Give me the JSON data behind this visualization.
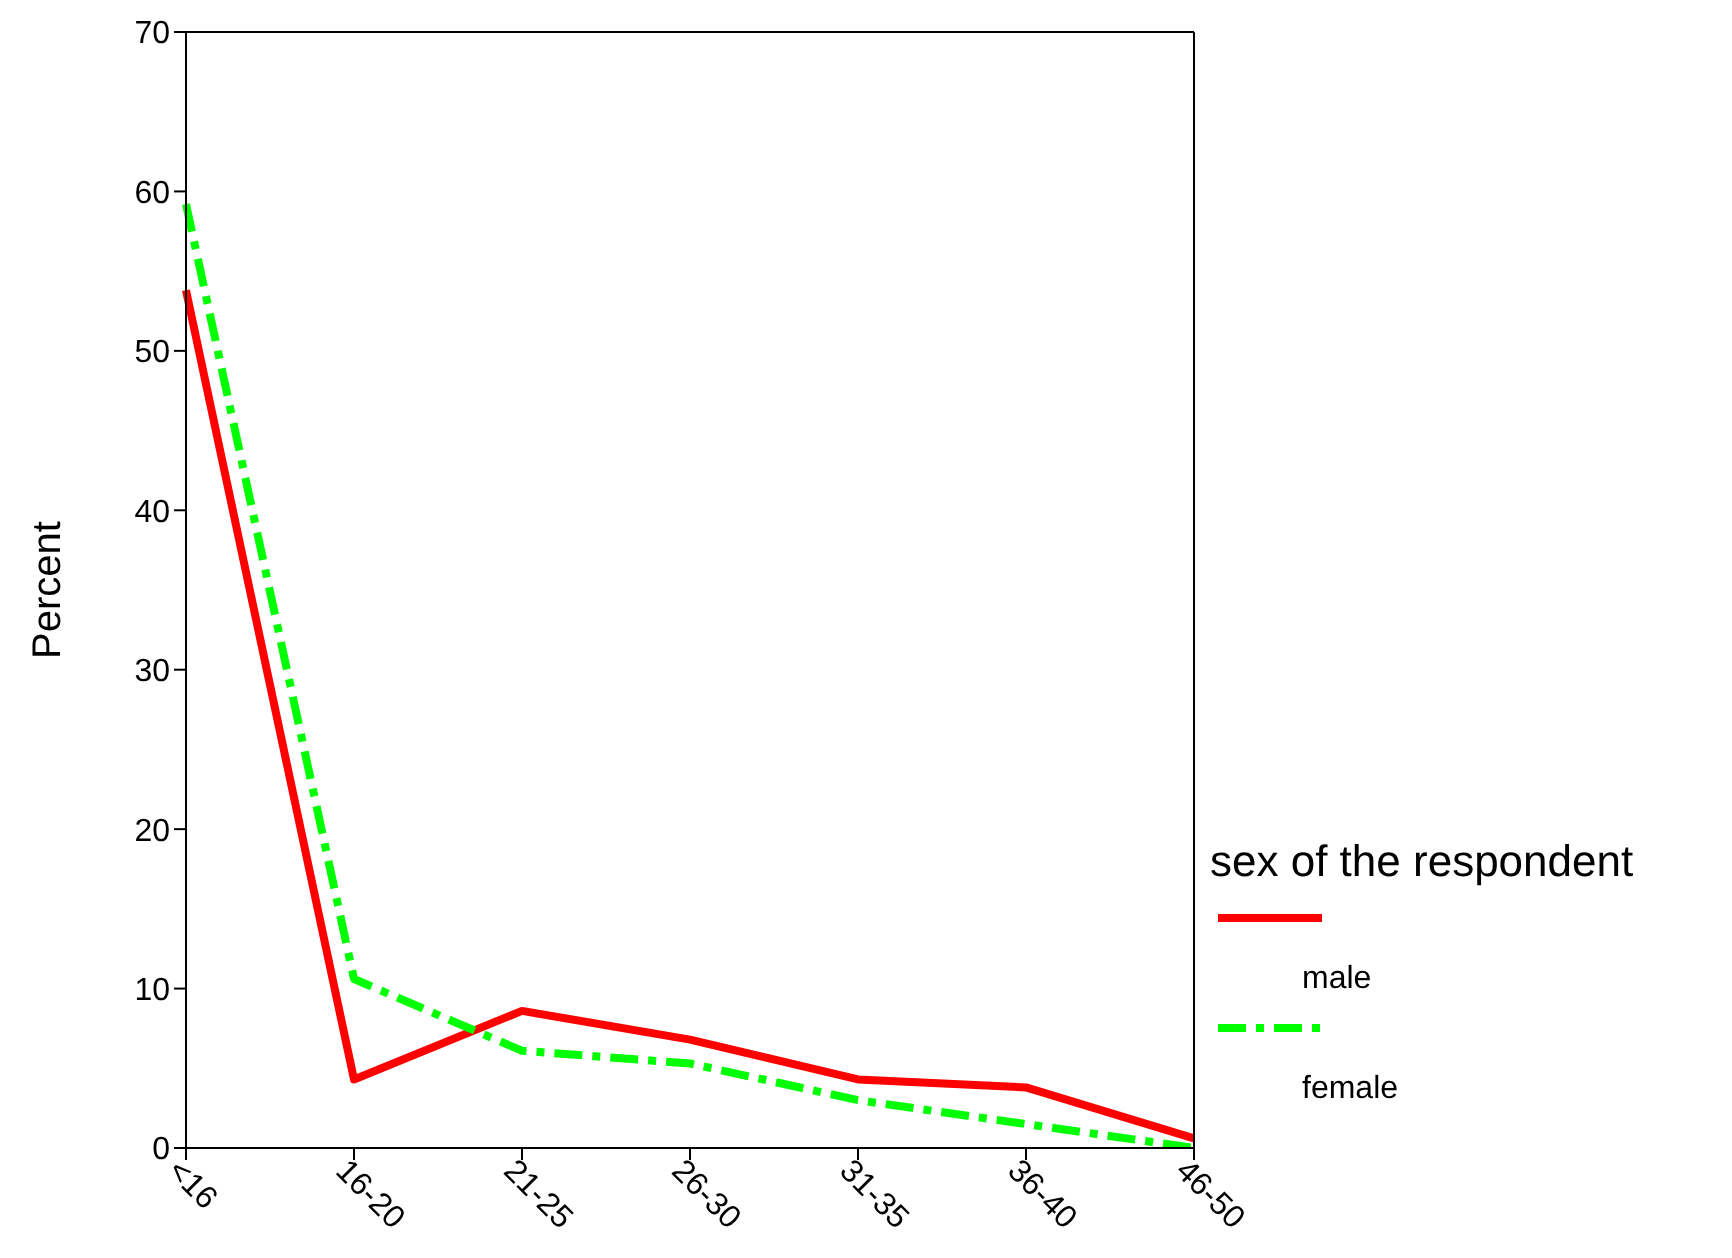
{
  "chart_data": {
    "type": "line",
    "ylabel": "Percent",
    "legend_title": "sex of the respondent",
    "legend": "right",
    "grid": false,
    "marker": "none",
    "categories": [
      "<16",
      "16-20",
      "21-25",
      "26-30",
      "31-35",
      "36-40",
      "46-50"
    ],
    "ylim": [
      0,
      70
    ],
    "yticks": [
      0,
      10,
      20,
      30,
      40,
      50,
      60,
      70
    ],
    "series": [
      {
        "name": "male",
        "color": "#ff0000",
        "line_style": "solid",
        "values": [
          53.8,
          4.3,
          8.6,
          6.8,
          4.3,
          3.8,
          0.6
        ]
      },
      {
        "name": "female",
        "color": "#00ff00",
        "line_style": "dashed",
        "values": [
          59.2,
          10.6,
          6.1,
          5.3,
          3.0,
          1.5,
          0
        ]
      }
    ]
  }
}
